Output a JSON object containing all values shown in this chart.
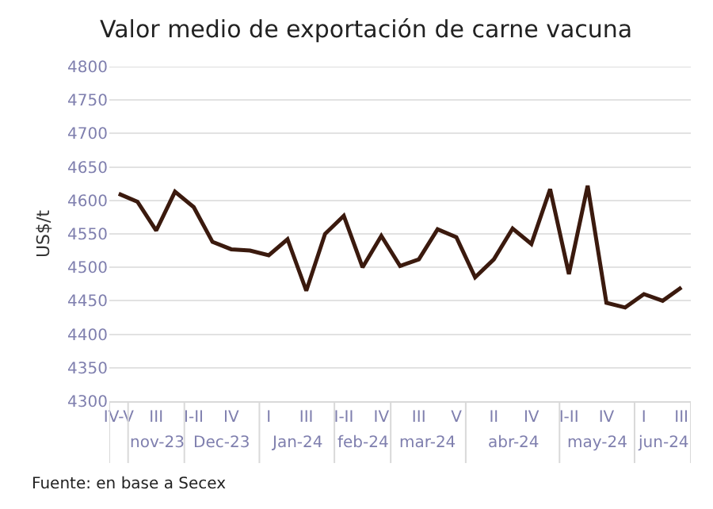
{
  "chart_data": {
    "type": "line",
    "title": "Valor medio de exportación de carne vacuna",
    "ylabel": "US$/t",
    "categories": [
      "IV-V",
      null,
      "III",
      null,
      "I-II",
      null,
      "IV",
      null,
      "I",
      null,
      "III",
      null,
      "I-II",
      null,
      "IV",
      null,
      "III",
      null,
      "V",
      null,
      "II",
      null,
      "IV",
      null,
      "I-II",
      null,
      "IV",
      null,
      "I",
      null,
      "III"
    ],
    "series": [
      {
        "color": "#3b1a0e",
        "values": [
          4610,
          4598,
          4555,
          4613,
          4590,
          4538,
          4527,
          4525,
          4518,
          4542,
          4465,
          4550,
          4577,
          4500,
          4547,
          4502,
          4512,
          4557,
          4545,
          4485,
          4512,
          4558,
          4535,
          4617,
          4490,
          4622,
          4447,
          4440,
          4460,
          4450,
          4470
        ]
      }
    ],
    "ylim": [
      4300,
      4800
    ],
    "yticks": [
      4300,
      4350,
      4400,
      4450,
      4500,
      4550,
      4600,
      4650,
      4700,
      4750,
      4800
    ],
    "grid": "y",
    "marker": "none",
    "line_style": "solid",
    "annotations": [
      "nov-23",
      "Dec-23",
      "Jan-24",
      "feb-24",
      "mar-24",
      "abr-24",
      "may-24",
      "jun-24",
      "Fuente: en base a Secex"
    ]
  }
}
